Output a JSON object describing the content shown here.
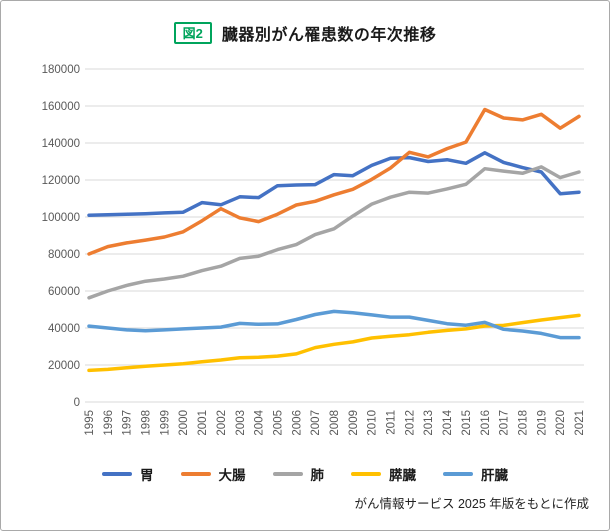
{
  "header": {
    "figure_tag": "図2",
    "title": "臓器別がん罹患数の年次推移"
  },
  "footer": {
    "source": "がん情報サービス 2025 年版をもとに作成"
  },
  "colors": {
    "accent_green": "#00A45C",
    "grid": "#d9d9d9",
    "axis_text": "#595959"
  },
  "chart_data": {
    "type": "line",
    "title": "臓器別がん罹患数の年次推移",
    "x": [
      1995,
      1996,
      1997,
      1998,
      1999,
      2000,
      2001,
      2002,
      2003,
      2004,
      2005,
      2006,
      2007,
      2008,
      2009,
      2010,
      2011,
      2012,
      2013,
      2014,
      2015,
      2016,
      2017,
      2018,
      2019,
      2020,
      2021
    ],
    "ylim": [
      0,
      180000
    ],
    "ytick_step": 20000,
    "grid": true,
    "legend_position": "bottom",
    "series": [
      {
        "key": "stomach",
        "name": "胃",
        "color": "#4472C4",
        "values": [
          101000,
          101200,
          101500,
          101800,
          102200,
          102600,
          107800,
          106600,
          110900,
          110500,
          116900,
          117300,
          117500,
          122900,
          122300,
          127900,
          131800,
          132100,
          130000,
          131000,
          129000,
          134700,
          129500,
          126700,
          124300,
          112600,
          113400
        ]
      },
      {
        "key": "colorectal",
        "name": "大腸",
        "color": "#ED7D31",
        "values": [
          80000,
          84000,
          86000,
          87500,
          89200,
          92000,
          98000,
          104500,
          99500,
          97500,
          101500,
          106500,
          108500,
          112000,
          115000,
          120300,
          126500,
          135000,
          132500,
          137000,
          140500,
          158100,
          153500,
          152500,
          155500,
          148000,
          154400
        ]
      },
      {
        "key": "lung",
        "name": "肺",
        "color": "#A5A5A5",
        "values": [
          56300,
          60000,
          63000,
          65300,
          66500,
          68000,
          71000,
          73400,
          77600,
          78800,
          82400,
          85100,
          90500,
          93600,
          100500,
          107000,
          110700,
          113400,
          112900,
          115200,
          117700,
          126100,
          124800,
          123600,
          127100,
          121300,
          124300
        ]
      },
      {
        "key": "pancreas",
        "name": "膵臓",
        "color": "#FFC000",
        "values": [
          17100,
          17600,
          18500,
          19300,
          20000,
          20700,
          21800,
          22700,
          23900,
          24200,
          24800,
          26000,
          29400,
          31200,
          32500,
          34600,
          35500,
          36400,
          37700,
          38700,
          39500,
          41100,
          41400,
          42900,
          44300,
          45600,
          46800
        ]
      },
      {
        "key": "liver",
        "name": "肝臓",
        "color": "#5B9BD5",
        "values": [
          41000,
          40000,
          39000,
          38500,
          39000,
          39500,
          40000,
          40500,
          42500,
          42000,
          42200,
          44600,
          47300,
          49000,
          48200,
          47100,
          45900,
          45900,
          44100,
          42300,
          41500,
          43000,
          39300,
          38400,
          37100,
          34800,
          34800
        ]
      }
    ]
  }
}
